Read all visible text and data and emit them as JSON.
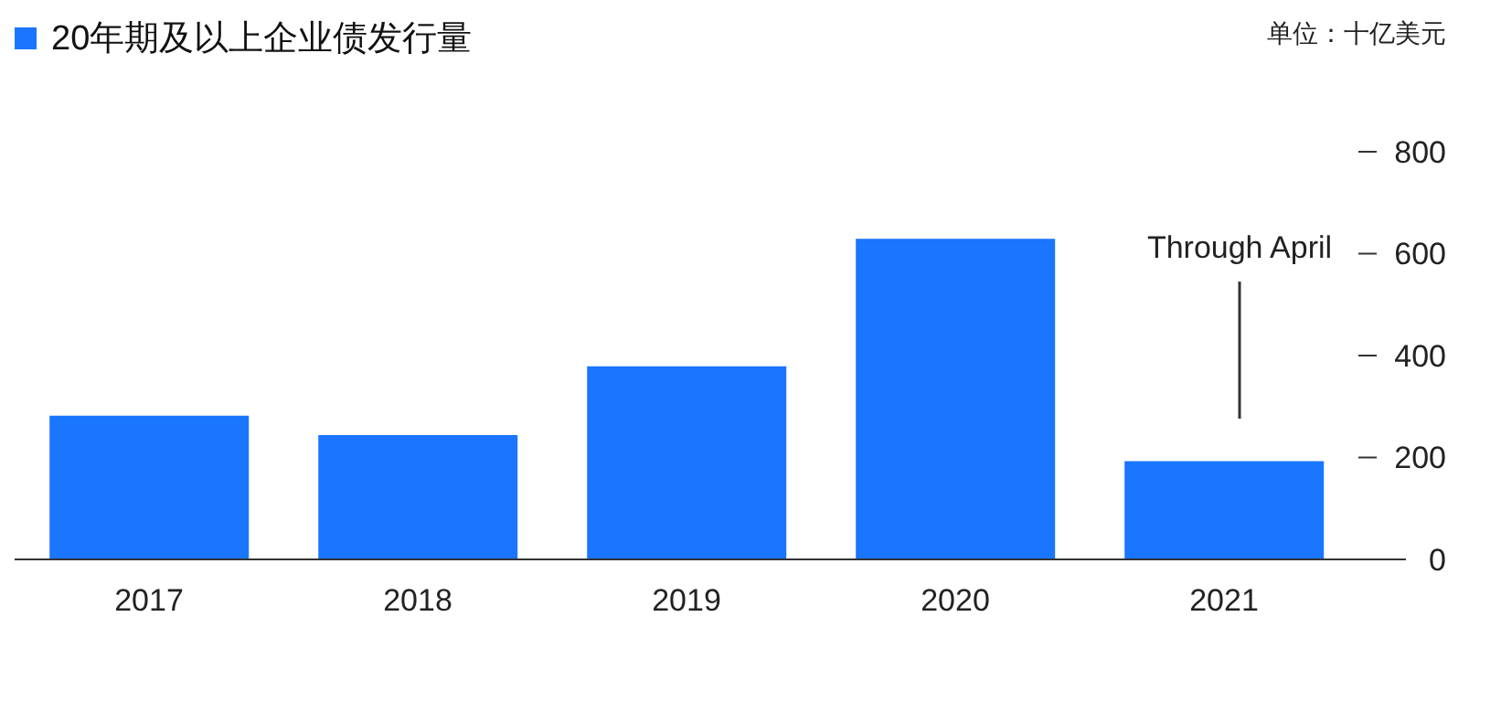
{
  "chart_data": {
    "type": "bar",
    "ylabel": "单位：十亿美元",
    "categories": [
      "2017",
      "2018",
      "2019",
      "2020",
      "2021"
    ],
    "series": [
      {
        "name": "20年期及以上企业债发行量",
        "color": "#1a75ff",
        "values": [
          282,
          244,
          379,
          629,
          193
        ]
      }
    ],
    "ylim": [
      0,
      800
    ],
    "yticks": [
      0,
      200,
      400,
      600,
      800
    ],
    "legend": "top left",
    "annotations": [
      "Through April"
    ]
  }
}
